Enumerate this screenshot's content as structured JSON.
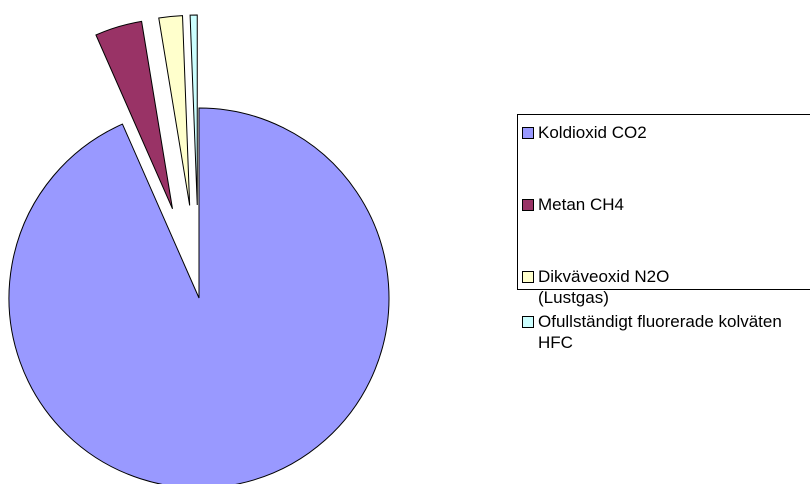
{
  "chart_data": {
    "type": "pie",
    "categories": [
      "Koldioxid CO2",
      "Metan CH4",
      "Dikväveoxid N2O (Lustgas)",
      "Ofullständigt fluorerade kolväten HFC"
    ],
    "values": [
      93.4,
      4.0,
      2.0,
      0.6
    ],
    "colors": [
      "#9999ff",
      "#993366",
      "#ffffcc",
      "#ccffff"
    ],
    "legend": "right"
  }
}
